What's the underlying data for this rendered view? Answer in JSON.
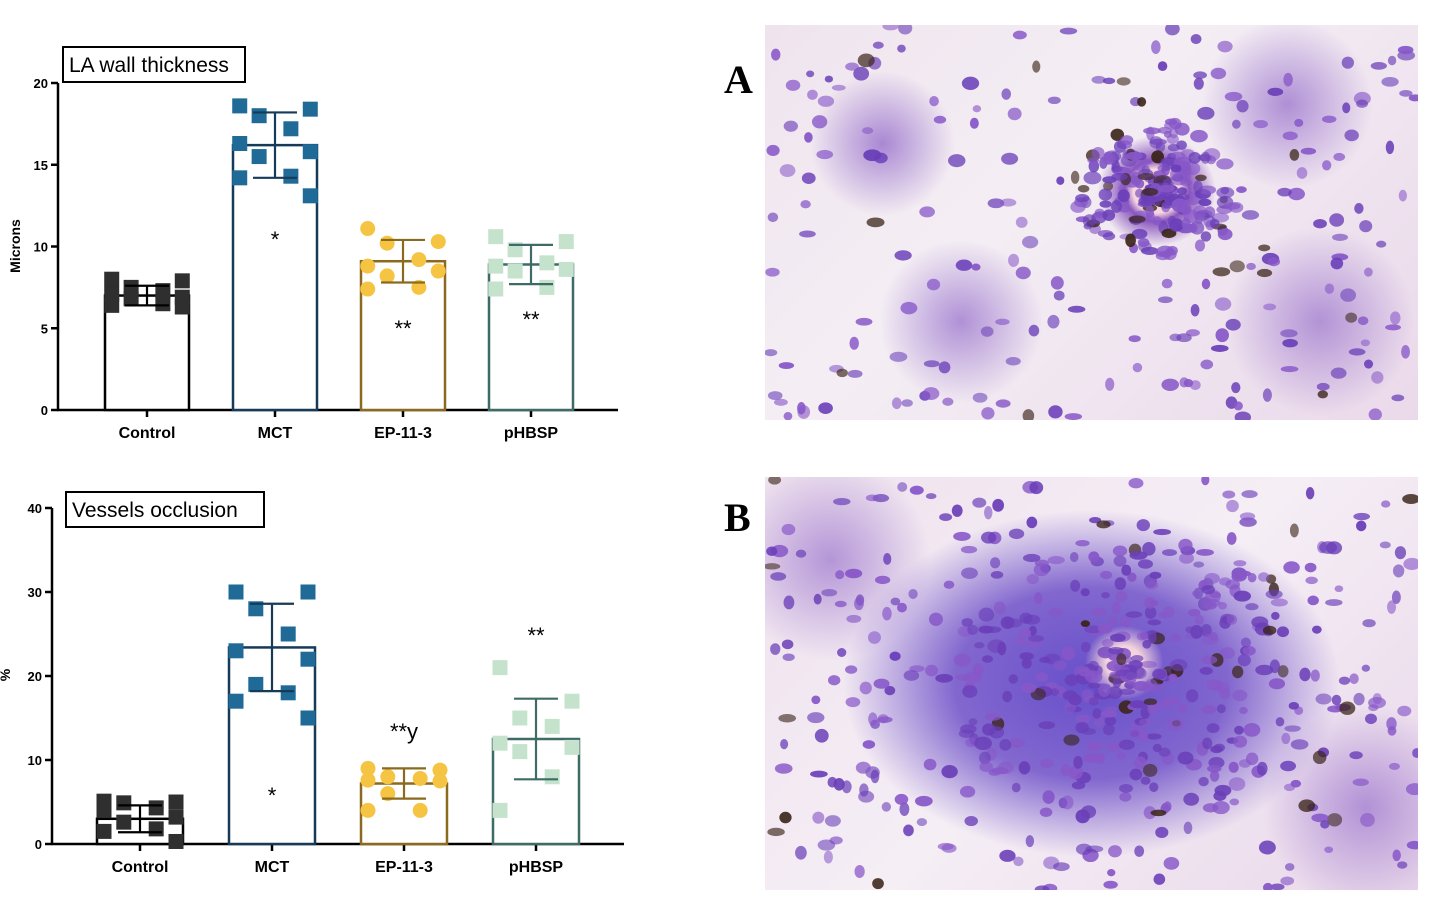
{
  "chart_data": [
    {
      "type": "bar",
      "title": "LA wall thickness",
      "ylabel": "Microns",
      "ylim": [
        0,
        20
      ],
      "yticks": [
        0,
        5,
        10,
        15,
        20
      ],
      "categories": [
        "Control",
        "MCT",
        "EP-11-3",
        "pHBSP"
      ],
      "values": [
        7.0,
        16.2,
        9.1,
        8.9
      ],
      "error": [
        0.6,
        2.0,
        1.3,
        1.2
      ],
      "significance": [
        "",
        "*",
        "**",
        "**"
      ],
      "points": [
        [
          8.0,
          7.9,
          7.5,
          7.3,
          7.1,
          6.9,
          6.8,
          6.5,
          6.4,
          6.3
        ],
        [
          18.6,
          18.4,
          18.0,
          17.2,
          16.3,
          15.8,
          15.5,
          14.3,
          14.2,
          13.1
        ],
        [
          11.1,
          10.3,
          10.2,
          9.2,
          8.8,
          8.5,
          8.2,
          7.5,
          7.4
        ],
        [
          10.6,
          10.3,
          9.8,
          9.0,
          8.8,
          8.6,
          8.5,
          7.5,
          7.4
        ]
      ],
      "series_colors": [
        "#2f2f2f",
        "#1f6a96",
        "#f6c443",
        "#c5e3cc"
      ],
      "marker_shapes": [
        "square",
        "square",
        "circle",
        "square"
      ],
      "bar_edge_colors": [
        "#000000",
        "#163a58",
        "#8a6a1e",
        "#3f6b66"
      ]
    },
    {
      "type": "bar",
      "title": "Vessels occlusion",
      "ylabel": "%",
      "ylim": [
        0,
        40
      ],
      "yticks": [
        0,
        10,
        20,
        30,
        40
      ],
      "categories": [
        "Control",
        "MCT",
        "EP-11-3",
        "pHBSP"
      ],
      "values": [
        3.0,
        23.4,
        7.2,
        12.5
      ],
      "error": [
        1.6,
        5.2,
        1.8,
        4.8
      ],
      "significance": [
        "",
        "*",
        "**y",
        "**"
      ],
      "points": [
        [
          5.1,
          5.0,
          4.9,
          4.3,
          4.0,
          3.2,
          2.6,
          1.8,
          1.5,
          0.3
        ],
        [
          30.0,
          30.0,
          28.0,
          25.0,
          23.0,
          22.0,
          19.0,
          18.0,
          17.0,
          15.0
        ],
        [
          9.0,
          8.8,
          8.0,
          7.8,
          7.6,
          7.5,
          6.0,
          4.0,
          4.0
        ],
        [
          21.0,
          17.0,
          15.0,
          14.0,
          12.0,
          11.5,
          11.0,
          8.0,
          4.0
        ]
      ],
      "series_colors": [
        "#2f2f2f",
        "#1f6a96",
        "#f6c443",
        "#c5e3cc"
      ],
      "marker_shapes": [
        "square",
        "square",
        "circle",
        "square"
      ],
      "bar_edge_colors": [
        "#000000",
        "#163a58",
        "#8a6a1e",
        "#3f6b66"
      ]
    }
  ],
  "panels": {
    "a_label": "A",
    "b_label": "B"
  }
}
